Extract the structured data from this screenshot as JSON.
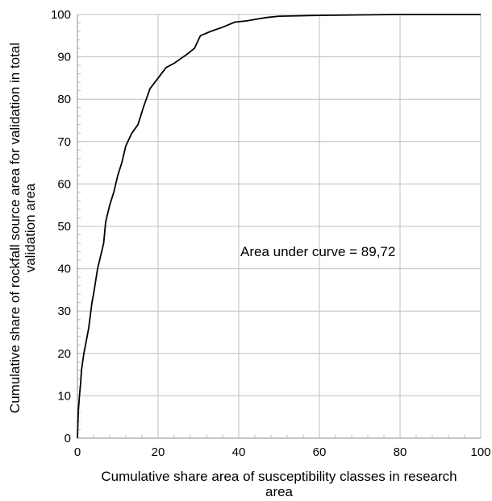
{
  "chart_data": {
    "type": "line",
    "title": "",
    "xlabel_lines": [
      "Cumulative  share area of susceptibility classes in research",
      "area"
    ],
    "ylabel_lines": [
      "Cumulative  share of rockfall source area for validation in total",
      "validation area"
    ],
    "annotation": "Area under curve = 89,72",
    "xlim": [
      0,
      100
    ],
    "ylim": [
      0,
      100
    ],
    "x_ticks": [
      0,
      20,
      40,
      60,
      80,
      100
    ],
    "y_ticks": [
      0,
      10,
      20,
      30,
      40,
      50,
      60,
      70,
      80,
      90,
      100
    ],
    "grid": true,
    "minor_ticks_y": true,
    "line_color": "#000000",
    "grid_color": "#bfbfbf",
    "series": [
      {
        "x": [
          0,
          0.2,
          0.5,
          0.8,
          1.0,
          1.3,
          1.6,
          2.0,
          2.4,
          2.8,
          3.2,
          3.6,
          4.0,
          4.5,
          5.0,
          5.5,
          6.5,
          7.0,
          8.0,
          9.0,
          10.0,
          11.0,
          12.0,
          13.5,
          15.0,
          16.5,
          18.0,
          20.0,
          22.0,
          24.0,
          25.5,
          27.0,
          29.0,
          30.5,
          33.0,
          36.0,
          39.0,
          42.0,
          45.0,
          47.0,
          50.0,
          55.0,
          60.0,
          70.0,
          80.0,
          100.0
        ],
        "y": [
          0,
          6,
          10,
          13,
          16,
          18,
          20,
          22,
          24,
          26,
          29,
          32,
          34,
          37,
          40,
          42,
          46,
          51,
          55,
          58,
          62,
          65,
          69,
          72,
          74,
          78.5,
          82.5,
          85,
          87.5,
          88.5,
          89.5,
          90.5,
          92,
          95,
          96,
          97,
          98.2,
          98.5,
          99,
          99.3,
          99.6,
          99.7,
          99.8,
          99.9,
          100,
          100
        ]
      }
    ]
  }
}
